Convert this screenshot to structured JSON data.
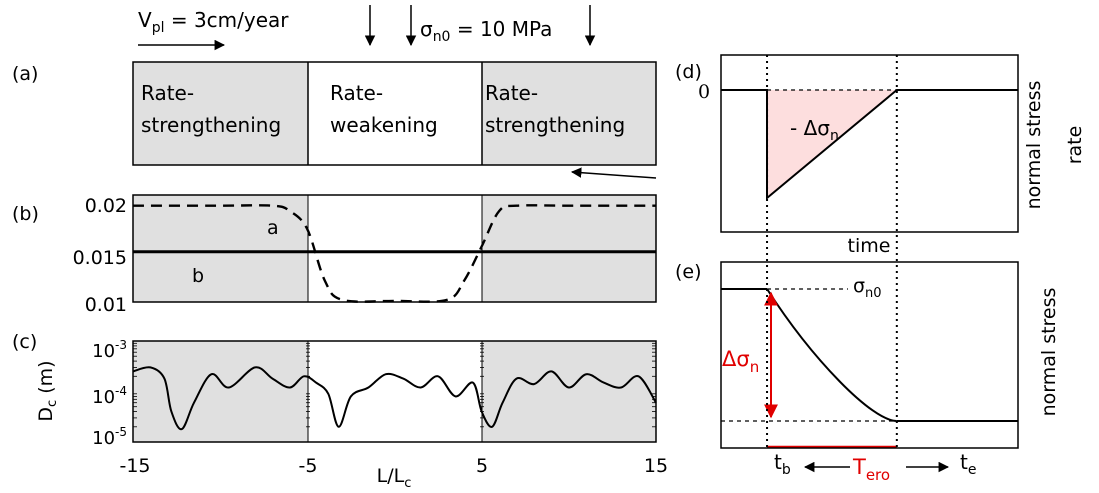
{
  "panel_labels": {
    "a": "(a)",
    "b": "(b)",
    "c": "(c)",
    "d": "(d)",
    "e": "(e)"
  },
  "panel_a": {
    "vpl_main": "V",
    "vpl_sub": "pl",
    "vpl_rest": " = 3cm/year",
    "sigma_main": "σ",
    "sigma_sub": "n0",
    "sigma_rest": " = 10 MPa",
    "left_zone": [
      "Rate-",
      "strengthening"
    ],
    "center_zone": [
      "Rate-",
      "weakening"
    ],
    "right_zone": [
      "Rate-",
      "strengthening"
    ]
  },
  "panel_b": {
    "yticks": [
      "0.02",
      "0.015",
      "0.01"
    ],
    "label_a": "a",
    "label_b": "b"
  },
  "panel_c": {
    "yticks": [
      {
        "base": "10",
        "exp": "-3"
      },
      {
        "base": "10",
        "exp": "-4"
      },
      {
        "base": "10",
        "exp": "-5"
      }
    ],
    "ylabel_main": "D",
    "ylabel_sub": "c",
    "ylabel_rest": " (m)",
    "xticks": [
      "-15",
      "-5",
      "5",
      "15"
    ],
    "xlabel_main": "L/L",
    "xlabel_sub": "c"
  },
  "panel_d": {
    "ytick": "0",
    "annotation": "- Δσ",
    "annotation_sub": "n",
    "ylabel_line1": "normal stress",
    "ylabel_line2": "rate",
    "xlabel": "time"
  },
  "panel_e": {
    "sigma_label": "σ",
    "sigma_sub": "n0",
    "delta_label": "Δσ",
    "delta_sub": "n",
    "ylabel": "normal stress",
    "tb_main": "t",
    "tb_sub": "b",
    "te_main": "t",
    "te_sub": "e",
    "tero_main": "T",
    "tero_sub": "ero"
  },
  "colors": {
    "shade": "#e0e0e0",
    "red": "#e00000",
    "pink": "#fddede"
  },
  "chart_data": [
    {
      "type": "line",
      "panel": "b",
      "x": [
        -15,
        -10,
        -7,
        -6,
        -5,
        -4,
        -3,
        0,
        3,
        4,
        5,
        6,
        7,
        10,
        15
      ],
      "series": [
        {
          "name": "a",
          "values": [
            0.019,
            0.019,
            0.019,
            0.0185,
            0.0168,
            0.012,
            0.0102,
            0.0101,
            0.0102,
            0.012,
            0.0152,
            0.0185,
            0.019,
            0.019,
            0.019
          ]
        },
        {
          "name": "b",
          "values": [
            0.0147,
            0.0147,
            0.0147,
            0.0147,
            0.0147,
            0.0147,
            0.0147,
            0.0147,
            0.0147,
            0.0147,
            0.0147,
            0.0147,
            0.0147,
            0.0147,
            0.0147
          ]
        }
      ],
      "ylim": [
        0.01,
        0.02
      ],
      "xlim": [
        -15,
        15
      ]
    },
    {
      "type": "line",
      "panel": "c",
      "yscale": "log",
      "ylim": [
        1e-05,
        0.001
      ],
      "xlim": [
        -15,
        15
      ],
      "x": [
        -15,
        -14,
        -13.2,
        -12.8,
        -12.2,
        -11.5,
        -10.5,
        -9.5,
        -8,
        -7,
        -6,
        -5.2,
        -4.5,
        -3.8,
        -3.2,
        -2.5,
        -1.5,
        -0.5,
        0.5,
        1.5,
        2.5,
        3.5,
        4.5,
        5,
        5.6,
        6.2,
        7,
        8,
        9,
        10,
        11,
        12,
        13,
        14,
        15
      ],
      "series": [
        {
          "name": "",
          "values": [
            0.00025,
            0.0003,
            0.00018,
            4e-05,
            1.8e-05,
            6e-05,
            0.00022,
            0.00012,
            0.0003,
            0.00018,
            0.00012,
            0.0002,
            0.00015,
            9e-05,
            2e-05,
            8e-05,
            0.00012,
            0.00022,
            0.00018,
            0.00012,
            0.0002,
            8e-05,
            0.00015,
            4e-05,
            2e-05,
            6e-05,
            0.00018,
            0.00014,
            0.00025,
            0.00012,
            0.00022,
            0.00015,
            0.00012,
            0.0002,
            6e-05
          ]
        }
      ]
    },
    {
      "type": "line",
      "panel": "d",
      "x": [
        0,
        0.155,
        0.155,
        0.592,
        1
      ],
      "series": [
        {
          "name": "",
          "values": [
            0,
            0,
            -1,
            0,
            0
          ]
        }
      ]
    },
    {
      "type": "line",
      "panel": "e",
      "x": [
        0,
        0.155,
        0.592,
        1
      ],
      "series": [
        {
          "name": "",
          "values": [
            1,
            1,
            0,
            0
          ]
        }
      ]
    }
  ]
}
